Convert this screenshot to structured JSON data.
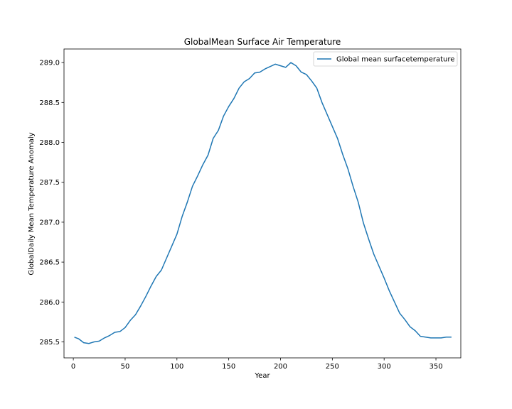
{
  "chart_data": {
    "type": "line",
    "title": "GlobalMean Surface Air Temperature",
    "xlabel": "Year",
    "ylabel": "GlobalDaily Mean Temperature Anomaly",
    "xlim": [
      -9,
      374
    ],
    "ylim": [
      285.3,
      289.17
    ],
    "xticks": [
      0,
      50,
      100,
      150,
      200,
      250,
      300,
      350
    ],
    "yticks": [
      285.5,
      286.0,
      286.5,
      287.0,
      287.5,
      288.0,
      288.5,
      289.0
    ],
    "ytick_labels": [
      "285.5",
      "286.0",
      "286.5",
      "287.0",
      "287.5",
      "288.0",
      "288.5",
      "289.0"
    ],
    "grid": false,
    "legend_position": "top-right",
    "series": [
      {
        "name": "Global mean surfacetemperature",
        "color": "#1f77b4",
        "x": [
          1,
          5,
          10,
          15,
          20,
          25,
          30,
          35,
          40,
          45,
          50,
          55,
          60,
          65,
          70,
          75,
          80,
          85,
          90,
          95,
          100,
          105,
          110,
          115,
          120,
          125,
          130,
          135,
          140,
          145,
          150,
          155,
          160,
          165,
          170,
          175,
          180,
          185,
          190,
          195,
          200,
          205,
          210,
          215,
          220,
          225,
          230,
          235,
          240,
          245,
          250,
          255,
          260,
          265,
          270,
          275,
          280,
          285,
          290,
          295,
          300,
          305,
          310,
          315,
          320,
          325,
          330,
          335,
          340,
          345,
          350,
          355,
          360,
          365
        ],
        "y": [
          285.56,
          285.54,
          285.49,
          285.48,
          285.5,
          285.51,
          285.55,
          285.58,
          285.62,
          285.63,
          285.68,
          285.77,
          285.84,
          285.95,
          286.07,
          286.2,
          286.32,
          286.4,
          286.55,
          286.7,
          286.85,
          287.07,
          287.25,
          287.45,
          287.58,
          287.72,
          287.84,
          288.05,
          288.15,
          288.33,
          288.45,
          288.55,
          288.68,
          288.76,
          288.8,
          288.87,
          288.88,
          288.92,
          288.95,
          288.98,
          288.96,
          288.94,
          289.0,
          288.96,
          288.88,
          288.85,
          288.77,
          288.68,
          288.5,
          288.35,
          288.2,
          288.05,
          287.85,
          287.67,
          287.45,
          287.25,
          286.99,
          286.79,
          286.6,
          286.45,
          286.3,
          286.14,
          286.0,
          285.86,
          285.78,
          285.69,
          285.64,
          285.57,
          285.56,
          285.55,
          285.55,
          285.55,
          285.56,
          285.56
        ]
      }
    ]
  }
}
